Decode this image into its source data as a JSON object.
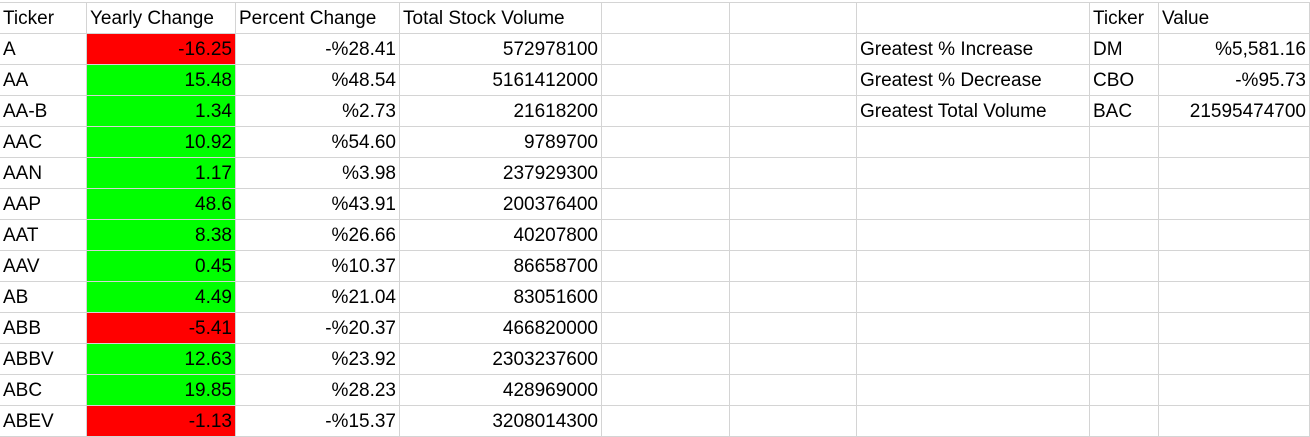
{
  "colors": {
    "positive_fill": "#00ff00",
    "negative_fill": "#ff0000",
    "gridline": "#d4d4d4"
  },
  "headers": {
    "ticker": "Ticker",
    "yearly_change": "Yearly Change",
    "percent_change": "Percent Change",
    "total_volume": "Total Stock Volume",
    "summary_ticker": "Ticker",
    "summary_value": "Value"
  },
  "rows": [
    {
      "ticker": "A",
      "change": "-16.25",
      "pct": "-%28.41",
      "vol": "572978100",
      "sign": "neg"
    },
    {
      "ticker": "AA",
      "change": "15.48",
      "pct": "%48.54",
      "vol": "5161412000",
      "sign": "pos"
    },
    {
      "ticker": "AA-B",
      "change": "1.34",
      "pct": "%2.73",
      "vol": "21618200",
      "sign": "pos"
    },
    {
      "ticker": "AAC",
      "change": "10.92",
      "pct": "%54.60",
      "vol": "9789700",
      "sign": "pos"
    },
    {
      "ticker": "AAN",
      "change": "1.17",
      "pct": "%3.98",
      "vol": "237929300",
      "sign": "pos"
    },
    {
      "ticker": "AAP",
      "change": "48.6",
      "pct": "%43.91",
      "vol": "200376400",
      "sign": "pos"
    },
    {
      "ticker": "AAT",
      "change": "8.38",
      "pct": "%26.66",
      "vol": "40207800",
      "sign": "pos"
    },
    {
      "ticker": "AAV",
      "change": "0.45",
      "pct": "%10.37",
      "vol": "86658700",
      "sign": "pos"
    },
    {
      "ticker": "AB",
      "change": "4.49",
      "pct": "%21.04",
      "vol": "83051600",
      "sign": "pos"
    },
    {
      "ticker": "ABB",
      "change": "-5.41",
      "pct": "-%20.37",
      "vol": "466820000",
      "sign": "neg"
    },
    {
      "ticker": "ABBV",
      "change": "12.63",
      "pct": "%23.92",
      "vol": "2303237600",
      "sign": "pos"
    },
    {
      "ticker": "ABC",
      "change": "19.85",
      "pct": "%28.23",
      "vol": "428969000",
      "sign": "pos"
    },
    {
      "ticker": "ABEV",
      "change": "-1.13",
      "pct": "-%15.37",
      "vol": "3208014300",
      "sign": "neg"
    }
  ],
  "summary": [
    {
      "label": "Greatest % Increase",
      "ticker": "DM",
      "value": "%5,581.16"
    },
    {
      "label": "Greatest % Decrease",
      "ticker": "CBO",
      "value": "-%95.73"
    },
    {
      "label": "Greatest Total Volume",
      "ticker": "BAC",
      "value": "21595474700"
    }
  ]
}
